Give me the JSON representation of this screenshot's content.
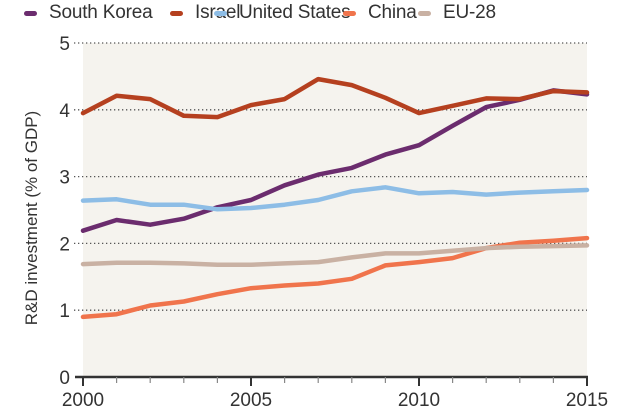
{
  "chart_data": {
    "type": "line",
    "title": "",
    "xlabel": "",
    "ylabel": "R&D investment (% of GDP)",
    "xlim": [
      2000,
      2015
    ],
    "ylim": [
      0,
      5
    ],
    "grid": "horizontal dotted",
    "legend_position": "top",
    "x": [
      2000,
      2001,
      2002,
      2003,
      2004,
      2005,
      2006,
      2007,
      2008,
      2009,
      2010,
      2011,
      2012,
      2013,
      2014,
      2015
    ],
    "x_ticks": [
      "2000",
      "2005",
      "2010",
      "2015"
    ],
    "y_ticks": [
      "0",
      "1",
      "2",
      "3",
      "4",
      "5"
    ],
    "series": [
      {
        "name": "South Korea",
        "color": "#6b2c6e",
        "values": [
          2.19,
          2.35,
          2.28,
          2.37,
          2.54,
          2.65,
          2.87,
          3.03,
          3.13,
          3.33,
          3.47,
          3.76,
          4.04,
          4.15,
          4.29,
          4.23
        ]
      },
      {
        "name": "Israel",
        "color": "#b5401f",
        "values": [
          3.95,
          4.21,
          4.16,
          3.91,
          3.89,
          4.07,
          4.16,
          4.46,
          4.37,
          4.18,
          3.95,
          4.06,
          4.17,
          4.16,
          4.28,
          4.26
        ]
      },
      {
        "name": "United States",
        "color": "#8dbde6",
        "values": [
          2.64,
          2.66,
          2.58,
          2.58,
          2.51,
          2.53,
          2.58,
          2.65,
          2.78,
          2.84,
          2.75,
          2.77,
          2.73,
          2.76,
          2.78,
          2.8
        ]
      },
      {
        "name": "China",
        "color": "#f0744c",
        "values": [
          0.9,
          0.94,
          1.07,
          1.13,
          1.24,
          1.33,
          1.37,
          1.4,
          1.47,
          1.67,
          1.72,
          1.78,
          1.93,
          2.01,
          2.04,
          2.08
        ]
      },
      {
        "name": "EU-28",
        "color": "#c9b1a3",
        "values": [
          1.69,
          1.71,
          1.71,
          1.7,
          1.68,
          1.68,
          1.7,
          1.72,
          1.79,
          1.85,
          1.85,
          1.89,
          1.93,
          1.95,
          1.96,
          1.97
        ]
      }
    ]
  },
  "colors": {
    "plot_background": "#f5f3ee",
    "axis": "#333333",
    "grid": "#555555"
  }
}
